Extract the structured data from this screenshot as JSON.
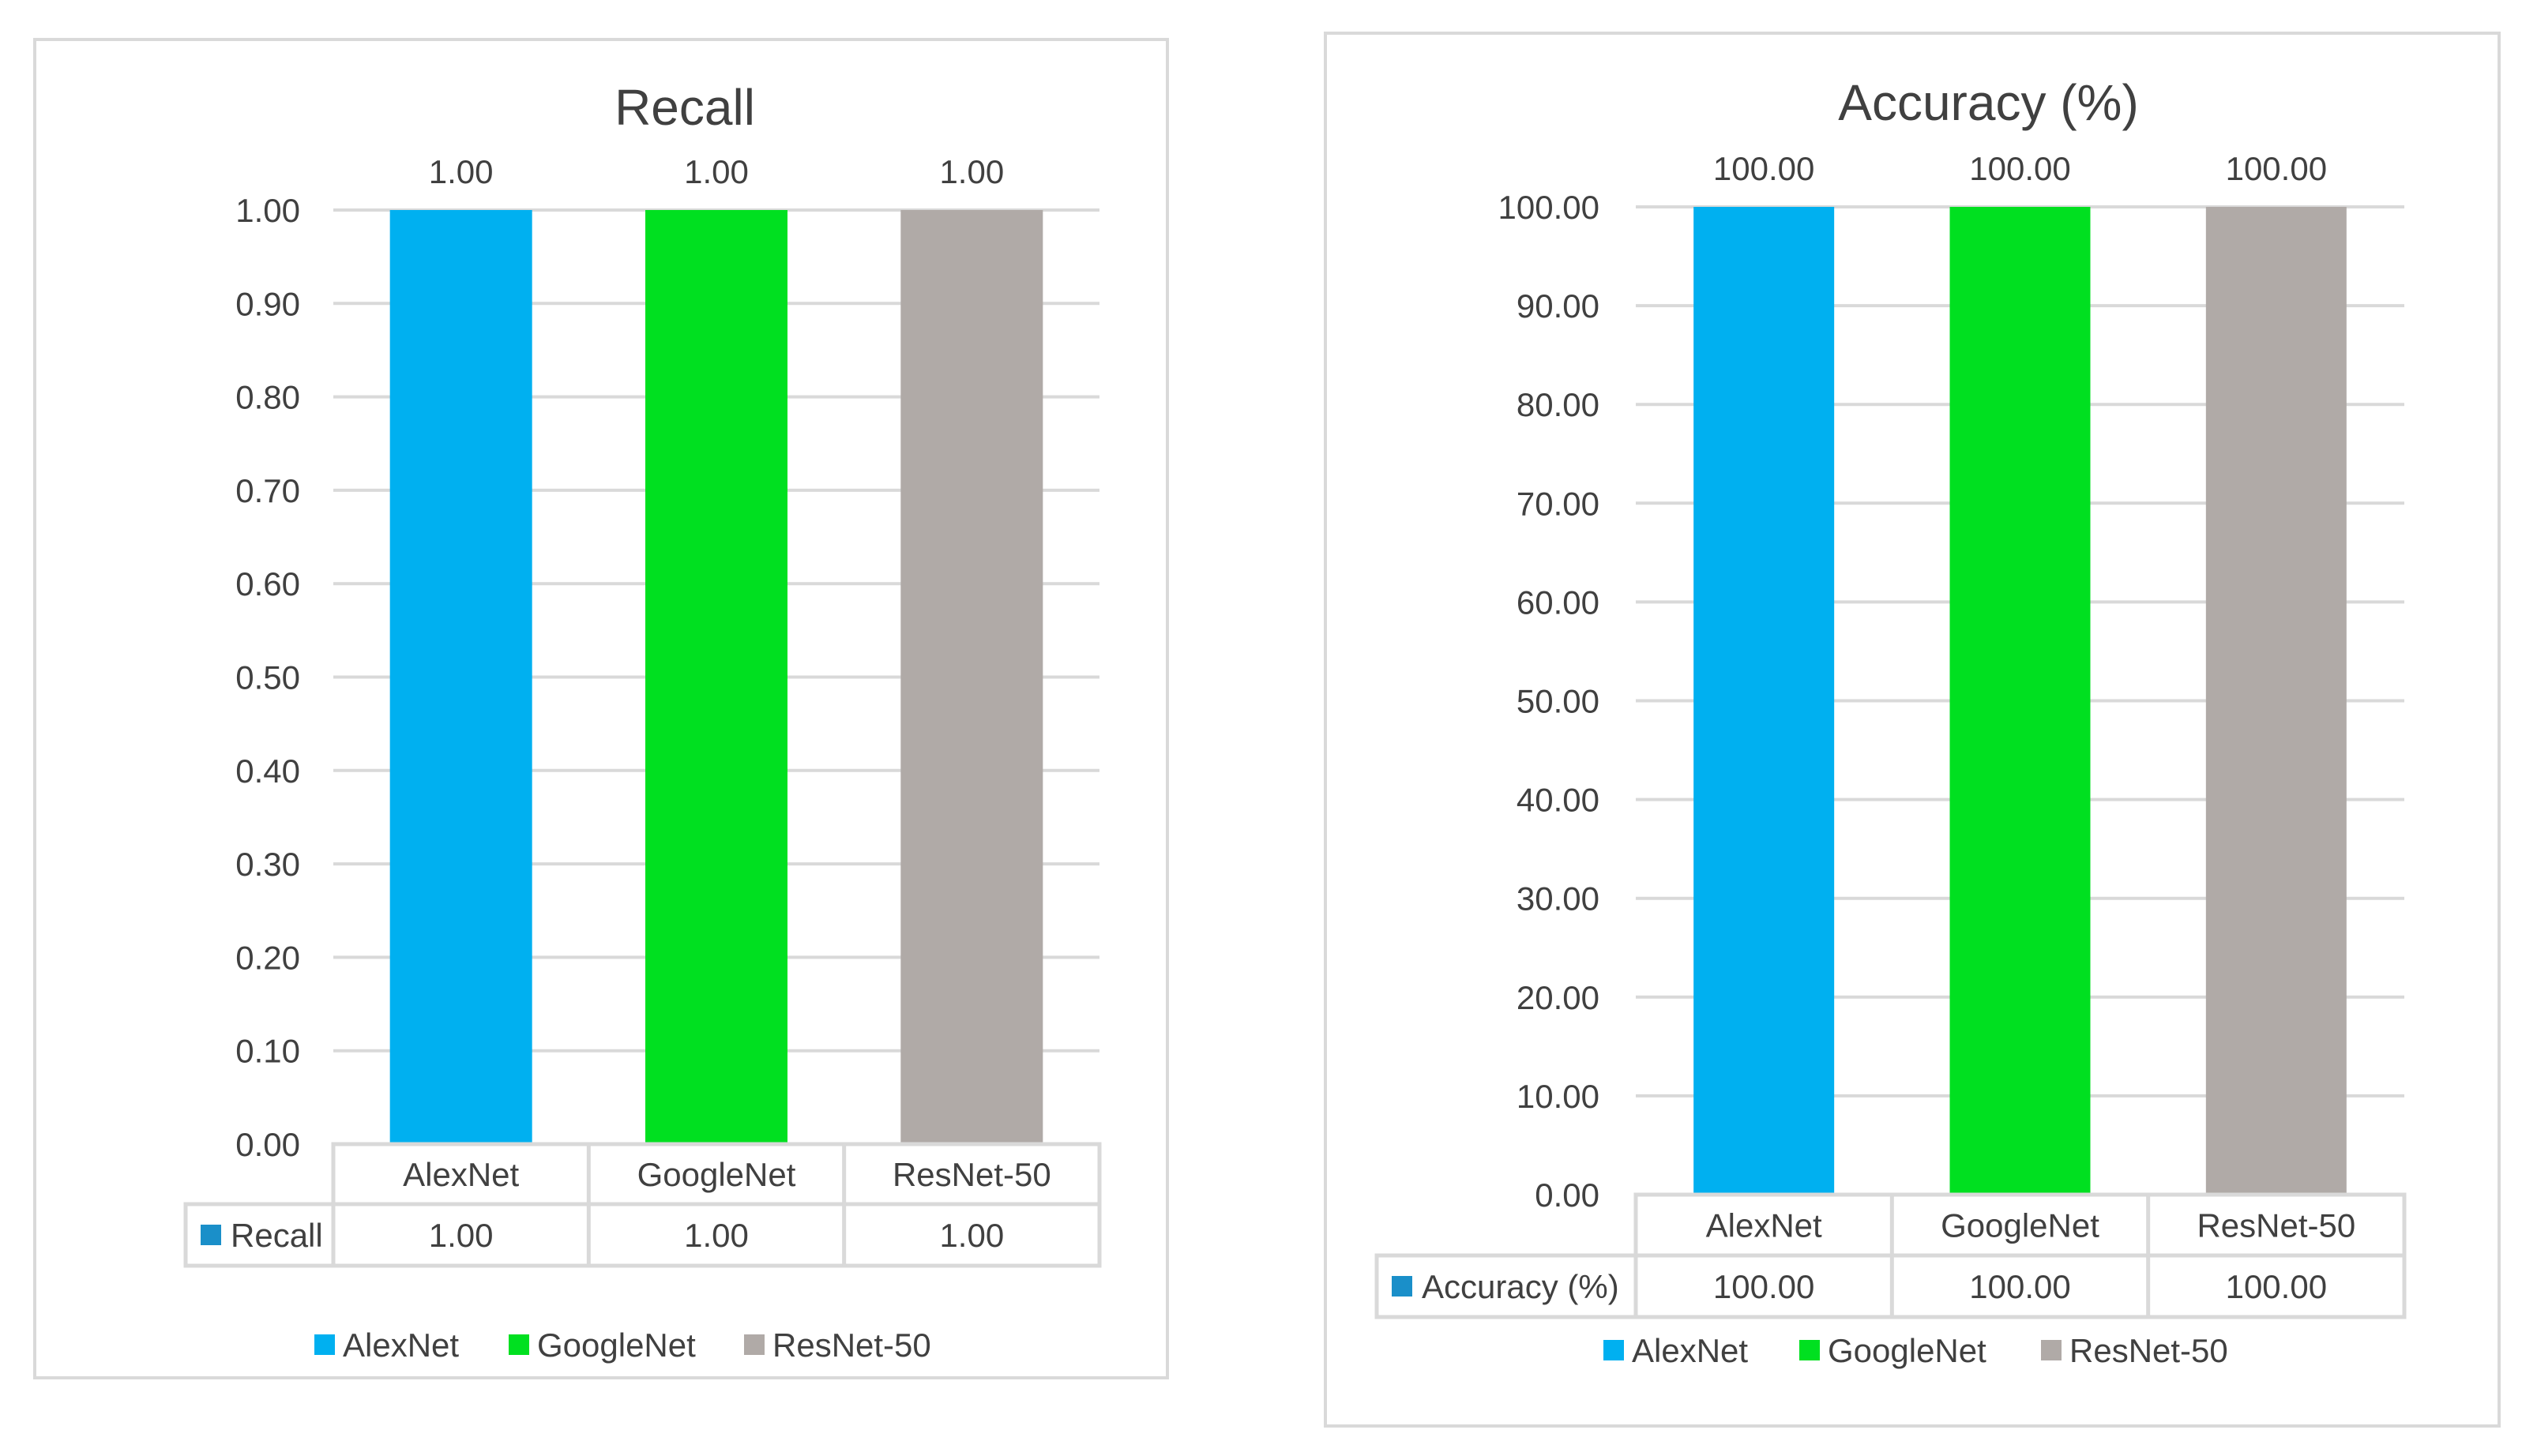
{
  "chart_data": [
    {
      "type": "bar",
      "title": "Recall",
      "categories": [
        "AlexNet",
        "GoogleNet",
        "ResNet-50"
      ],
      "values": [
        1.0,
        1.0,
        1.0
      ],
      "value_labels": [
        "1.00",
        "1.00",
        "1.00"
      ],
      "colors": [
        "#00b0f0",
        "#00e020",
        "#b0aaa7"
      ],
      "ylim": [
        0,
        1
      ],
      "yticks": [
        0,
        0.1,
        0.2,
        0.3,
        0.4,
        0.5,
        0.6,
        0.7,
        0.8,
        0.9,
        1.0
      ],
      "ytick_labels": [
        "0.00",
        "0.10",
        "0.20",
        "0.30",
        "0.40",
        "0.50",
        "0.60",
        "0.70",
        "0.80",
        "0.90",
        "1.00"
      ],
      "grid": true,
      "data_table": {
        "row_label": "Recall",
        "row_key_color": "#1a8fc9",
        "cells": [
          "1.00",
          "1.00",
          "1.00"
        ]
      },
      "legend": {
        "placement": "bottom",
        "entries": [
          "AlexNet",
          "GoogleNet",
          "ResNet-50"
        ]
      }
    },
    {
      "type": "bar",
      "title": "Accuracy (%)",
      "categories": [
        "AlexNet",
        "GoogleNet",
        "ResNet-50"
      ],
      "values": [
        100.0,
        100.0,
        100.0
      ],
      "value_labels": [
        "100.00",
        "100.00",
        "100.00"
      ],
      "colors": [
        "#00b0f0",
        "#00e020",
        "#b0aaa7"
      ],
      "ylim": [
        0,
        100
      ],
      "yticks": [
        0,
        10,
        20,
        30,
        40,
        50,
        60,
        70,
        80,
        90,
        100
      ],
      "ytick_labels": [
        "0.00",
        "10.00",
        "20.00",
        "30.00",
        "40.00",
        "50.00",
        "60.00",
        "70.00",
        "80.00",
        "90.00",
        "100.00"
      ],
      "grid": true,
      "data_table": {
        "row_label": "Accuracy (%)",
        "row_key_color": "#1a8fc9",
        "cells": [
          "100.00",
          "100.00",
          "100.00"
        ]
      },
      "legend": {
        "placement": "bottom",
        "entries": [
          "AlexNet",
          "GoogleNet",
          "ResNet-50"
        ]
      }
    }
  ]
}
